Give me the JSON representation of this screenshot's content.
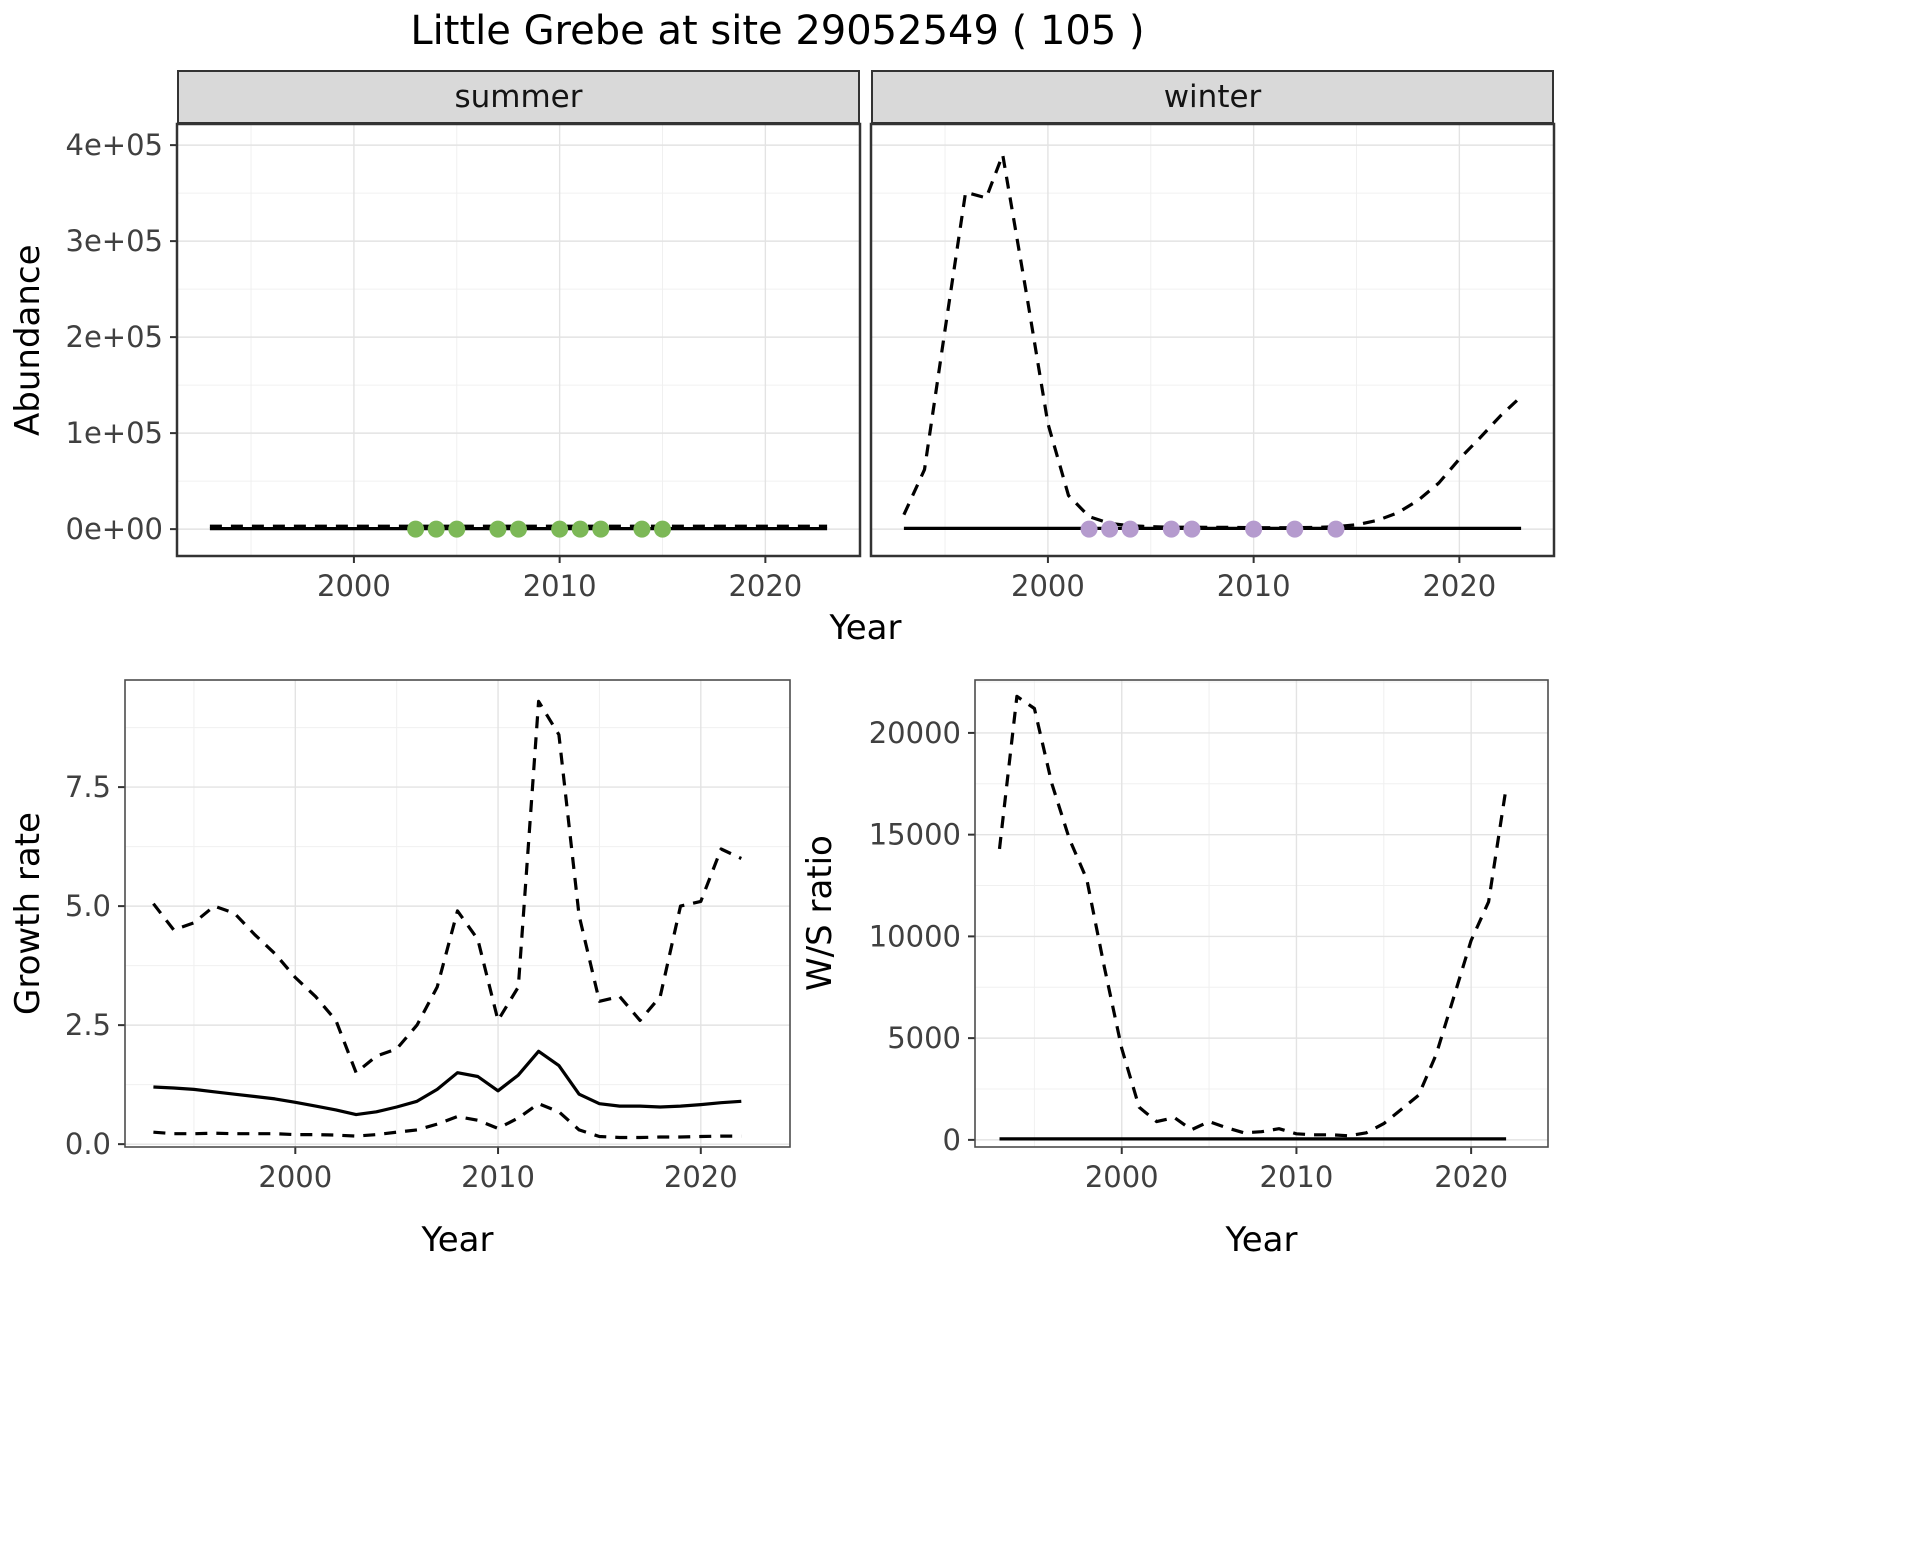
{
  "title": "Little Grebe at site 29052549 ( 105 )",
  "colors": {
    "line": "#000000",
    "summer_points": "#7cb857",
    "winter_points": "#b59bce",
    "strip_bg": "#d9d9d9"
  },
  "chart_data": [
    {
      "id": "abundance-summer",
      "type": "line",
      "facet_label": "summer",
      "xlabel": "Year",
      "ylabel": "Abundance",
      "xlim": [
        1991.4,
        2024.6
      ],
      "ylim": [
        -28000,
        422000
      ],
      "xticks": [
        2000,
        2010,
        2020
      ],
      "xtick_labels": [
        "2000",
        "2010",
        "2020"
      ],
      "yticks": [
        0,
        100000,
        200000,
        300000,
        400000
      ],
      "ytick_labels": [
        "0e+00",
        "1e+05",
        "2e+05",
        "3e+05",
        "4e+05"
      ],
      "grid": true,
      "legend": "none",
      "series": [
        {
          "name": "summer-abundance-upper-dashed",
          "style": "dashed",
          "color": "#000000",
          "points": [
            [
              1993,
              3000
            ],
            [
              2023,
              3000
            ]
          ]
        },
        {
          "name": "summer-abundance-median",
          "style": "solid",
          "color": "#000000",
          "points": [
            [
              1993,
              500
            ],
            [
              2023,
              500
            ]
          ]
        },
        {
          "name": "summer-observed-counts",
          "style": "points",
          "color": "#7cb857",
          "points": [
            [
              2003,
              0
            ],
            [
              2004,
              0
            ],
            [
              2005,
              0
            ],
            [
              2007,
              0
            ],
            [
              2008,
              0
            ],
            [
              2010,
              0
            ],
            [
              2011,
              0
            ],
            [
              2012,
              0
            ],
            [
              2014,
              0
            ],
            [
              2015,
              0
            ]
          ]
        }
      ]
    },
    {
      "id": "abundance-winter",
      "type": "line",
      "facet_label": "winter",
      "xlabel": "Year",
      "ylabel": "Abundance",
      "xlim": [
        1991.4,
        2024.6
      ],
      "ylim": [
        -28000,
        422000
      ],
      "xticks": [
        2000,
        2010,
        2020
      ],
      "xtick_labels": [
        "2000",
        "2010",
        "2020"
      ],
      "yticks": [
        0,
        100000,
        200000,
        300000,
        400000
      ],
      "ytick_labels": [
        "0e+00",
        "1e+05",
        "2e+05",
        "3e+05",
        "4e+05"
      ],
      "grid": true,
      "legend": "none",
      "series": [
        {
          "name": "winter-abundance-upper-dashed",
          "style": "dashed",
          "color": "#000000",
          "points": [
            [
              1993,
              15000
            ],
            [
              1994,
              62000
            ],
            [
              1995,
              208000
            ],
            [
              1996,
              351000
            ],
            [
              1997,
              345000
            ],
            [
              1997.8,
              390000
            ],
            [
              1999,
              240000
            ],
            [
              2000,
              110000
            ],
            [
              2001,
              35000
            ],
            [
              2002,
              13000
            ],
            [
              2003,
              6000
            ],
            [
              2004,
              3500
            ],
            [
              2005,
              2500
            ],
            [
              2006,
              2000
            ],
            [
              2007,
              2000
            ],
            [
              2008,
              1800
            ],
            [
              2009,
              1800
            ],
            [
              2010,
              1500
            ],
            [
              2011,
              1500
            ],
            [
              2012,
              1500
            ],
            [
              2013,
              1800
            ],
            [
              2014,
              2500
            ],
            [
              2015,
              4500
            ],
            [
              2016,
              9000
            ],
            [
              2017,
              17000
            ],
            [
              2018,
              30000
            ],
            [
              2019,
              48000
            ],
            [
              2020,
              73000
            ],
            [
              2021,
              95000
            ],
            [
              2022,
              118000
            ],
            [
              2023,
              138000
            ]
          ]
        },
        {
          "name": "winter-abundance-median",
          "style": "solid",
          "color": "#000000",
          "points": [
            [
              1993,
              800
            ],
            [
              2023,
              800
            ]
          ]
        },
        {
          "name": "winter-observed-counts",
          "style": "points",
          "color": "#b59bce",
          "points": [
            [
              2002,
              0
            ],
            [
              2003,
              0
            ],
            [
              2004,
              0
            ],
            [
              2006,
              0
            ],
            [
              2007,
              0
            ],
            [
              2010,
              0
            ],
            [
              2012,
              0
            ],
            [
              2014,
              0
            ]
          ]
        }
      ]
    },
    {
      "id": "growth-rate",
      "type": "line",
      "xlabel": "Year",
      "ylabel": "Growth rate",
      "xlim": [
        1991.6,
        2024.4
      ],
      "ylim": [
        -0.06,
        9.75
      ],
      "xticks": [
        2000,
        2010,
        2020
      ],
      "xtick_labels": [
        "2000",
        "2010",
        "2020"
      ],
      "yticks": [
        0.0,
        2.5,
        5.0,
        7.5
      ],
      "ytick_labels": [
        "0.0",
        "2.5",
        "5.0",
        "7.5"
      ],
      "grid": true,
      "legend": "none",
      "series": [
        {
          "name": "growth-upper-dashed",
          "style": "dashed",
          "color": "#000000",
          "points": [
            [
              1993,
              5.05
            ],
            [
              1994,
              4.5
            ],
            [
              1995,
              4.65
            ],
            [
              1996,
              5.0
            ],
            [
              1997,
              4.85
            ],
            [
              1998,
              4.4
            ],
            [
              1999,
              4.0
            ],
            [
              2000,
              3.5
            ],
            [
              2001,
              3.1
            ],
            [
              2002,
              2.6
            ],
            [
              2003,
              1.5
            ],
            [
              2004,
              1.85
            ],
            [
              2005,
              2.0
            ],
            [
              2006,
              2.5
            ],
            [
              2007,
              3.3
            ],
            [
              2008,
              4.9
            ],
            [
              2009,
              4.3
            ],
            [
              2010,
              2.6
            ],
            [
              2011,
              3.3
            ],
            [
              2012,
              9.3
            ],
            [
              2013,
              8.6
            ],
            [
              2014,
              4.8
            ],
            [
              2015,
              3.0
            ],
            [
              2016,
              3.1
            ],
            [
              2017,
              2.6
            ],
            [
              2018,
              3.1
            ],
            [
              2019,
              5.0
            ],
            [
              2020,
              5.1
            ],
            [
              2021,
              6.2
            ],
            [
              2022,
              6.0
            ]
          ]
        },
        {
          "name": "growth-median",
          "style": "solid",
          "color": "#000000",
          "points": [
            [
              1993,
              1.2
            ],
            [
              1994,
              1.18
            ],
            [
              1995,
              1.15
            ],
            [
              1996,
              1.1
            ],
            [
              1997,
              1.05
            ],
            [
              1998,
              1.0
            ],
            [
              1999,
              0.95
            ],
            [
              2000,
              0.88
            ],
            [
              2001,
              0.8
            ],
            [
              2002,
              0.72
            ],
            [
              2003,
              0.62
            ],
            [
              2004,
              0.68
            ],
            [
              2005,
              0.78
            ],
            [
              2006,
              0.9
            ],
            [
              2007,
              1.15
            ],
            [
              2008,
              1.5
            ],
            [
              2009,
              1.42
            ],
            [
              2010,
              1.12
            ],
            [
              2011,
              1.45
            ],
            [
              2012,
              1.95
            ],
            [
              2013,
              1.65
            ],
            [
              2014,
              1.05
            ],
            [
              2015,
              0.85
            ],
            [
              2016,
              0.8
            ],
            [
              2017,
              0.8
            ],
            [
              2018,
              0.78
            ],
            [
              2019,
              0.8
            ],
            [
              2020,
              0.83
            ],
            [
              2021,
              0.87
            ],
            [
              2022,
              0.9
            ]
          ]
        },
        {
          "name": "growth-lower-dashed",
          "style": "dashed",
          "color": "#000000",
          "points": [
            [
              1993,
              0.25
            ],
            [
              1994,
              0.22
            ],
            [
              1995,
              0.22
            ],
            [
              1996,
              0.23
            ],
            [
              1997,
              0.22
            ],
            [
              1998,
              0.22
            ],
            [
              1999,
              0.22
            ],
            [
              2000,
              0.2
            ],
            [
              2001,
              0.2
            ],
            [
              2002,
              0.19
            ],
            [
              2003,
              0.17
            ],
            [
              2004,
              0.2
            ],
            [
              2005,
              0.25
            ],
            [
              2006,
              0.3
            ],
            [
              2007,
              0.42
            ],
            [
              2008,
              0.58
            ],
            [
              2009,
              0.5
            ],
            [
              2010,
              0.33
            ],
            [
              2011,
              0.55
            ],
            [
              2012,
              0.85
            ],
            [
              2013,
              0.68
            ],
            [
              2014,
              0.3
            ],
            [
              2015,
              0.16
            ],
            [
              2016,
              0.14
            ],
            [
              2017,
              0.14
            ],
            [
              2018,
              0.15
            ],
            [
              2019,
              0.15
            ],
            [
              2020,
              0.16
            ],
            [
              2021,
              0.17
            ],
            [
              2022,
              0.17
            ]
          ]
        }
      ]
    },
    {
      "id": "ws-ratio",
      "type": "line",
      "xlabel": "Year",
      "ylabel": "W/S ratio",
      "xlim": [
        1991.6,
        2024.4
      ],
      "ylim": [
        -350,
        22600
      ],
      "xticks": [
        2000,
        2010,
        2020
      ],
      "xtick_labels": [
        "2000",
        "2010",
        "2020"
      ],
      "yticks": [
        0,
        5000,
        10000,
        15000,
        20000
      ],
      "ytick_labels": [
        "0",
        "5000",
        "10000",
        "15000",
        "20000"
      ],
      "grid": true,
      "legend": "none",
      "series": [
        {
          "name": "ws-upper-dashed",
          "style": "dashed",
          "color": "#000000",
          "points": [
            [
              1993,
              14300
            ],
            [
              1994,
              21800
            ],
            [
              1995,
              21200
            ],
            [
              1996,
              17500
            ],
            [
              1997,
              14800
            ],
            [
              1998,
              12800
            ],
            [
              1999,
              8500
            ],
            [
              2000,
              4500
            ],
            [
              2001,
              1600
            ],
            [
              2002,
              900
            ],
            [
              2003,
              1100
            ],
            [
              2004,
              500
            ],
            [
              2005,
              900
            ],
            [
              2006,
              600
            ],
            [
              2007,
              350
            ],
            [
              2008,
              400
            ],
            [
              2009,
              550
            ],
            [
              2010,
              300
            ],
            [
              2011,
              250
            ],
            [
              2012,
              250
            ],
            [
              2013,
              200
            ],
            [
              2014,
              350
            ],
            [
              2015,
              800
            ],
            [
              2016,
              1500
            ],
            [
              2017,
              2200
            ],
            [
              2018,
              4200
            ],
            [
              2019,
              7000
            ],
            [
              2020,
              9800
            ],
            [
              2021,
              11700
            ],
            [
              2022,
              17300
            ]
          ]
        },
        {
          "name": "ws-median",
          "style": "solid",
          "color": "#000000",
          "points": [
            [
              1993,
              50
            ],
            [
              2022,
              50
            ]
          ]
        }
      ]
    }
  ]
}
